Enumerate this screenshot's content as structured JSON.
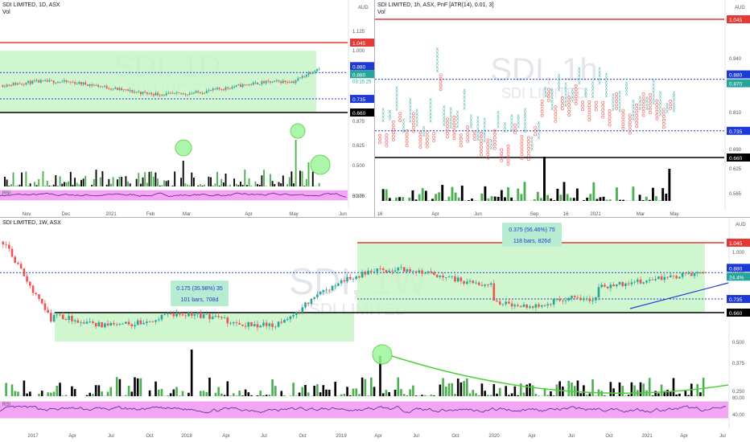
{
  "colors": {
    "up": "#26a69a",
    "down": "#ef5350",
    "vol_up": "#4caf50",
    "vol_down": "#000000",
    "band": "#c8f5c8",
    "rsi_band": "#f3a6f3",
    "red_level": "#e53935",
    "blue_level": "#1e3ad6",
    "black_level": "#000000",
    "trend": "#1e3ad6",
    "arc": "#4cd137"
  },
  "pane_daily": {
    "title": "SDI LIMITED, 1D, ASX",
    "vol_label": "Vol",
    "watermark": "SDI, 1D",
    "watermark_sub": "SDI LIMITED",
    "currency": "AUD",
    "y_ticks": [
      "1.125",
      "1.000",
      "0.875",
      "0.625",
      "0.500",
      "0.375",
      "50.00"
    ],
    "level_tags": [
      "1.045",
      "0.880",
      "0.880",
      "0.735",
      "0.660"
    ],
    "countdown": "03:15:25",
    "x_ticks": [
      "Nov",
      "Dec",
      "2021",
      "Feb",
      "Mar",
      "Apr",
      "May",
      "Jun"
    ],
    "rsi_label": "RSI",
    "chart_data": {
      "type": "candlestick",
      "levels": [
        1.045,
        0.88,
        0.735,
        0.66
      ],
      "last": 0.88,
      "ylim": [
        0.56,
        1.16
      ]
    }
  },
  "pane_pnf": {
    "title": "SDI LIMITED, 1h, ASX, PnF [ATR(14), 0.01, 3]",
    "vol_label": "Vol",
    "watermark": "SDI, 1h",
    "watermark_sub": "SDI LIMITED",
    "currency": "AUD",
    "y_ticks": [
      "0.940",
      "0.810",
      "0.690",
      "0.625",
      "0.565"
    ],
    "level_tags": [
      "1.045",
      "0.880",
      "0.870",
      "0.735",
      "0.660"
    ],
    "x_ticks": [
      "16",
      "Apr",
      "Jun",
      "Sep",
      "16",
      "2021",
      "Mar",
      "May"
    ],
    "chart_data": {
      "type": "point-and-figure",
      "levels": [
        1.045,
        0.88,
        0.735,
        0.66
      ],
      "box_size": 0.01,
      "reversal": 3,
      "ylim": [
        0.55,
        1.1
      ]
    }
  },
  "pane_weekly": {
    "title": "SDI LIMITED, 1W, ASX",
    "watermark": "SDI, 1W",
    "watermark_sub": "SDI LIMITED",
    "currency": "AUD",
    "y_ticks": [
      "1.000",
      "0.880",
      "0.500",
      "0.375",
      "0.250",
      "80.00",
      "40.00"
    ],
    "level_tags": [
      "1.045",
      "0.880",
      "24.4%",
      "0.735",
      "0.660"
    ],
    "box1_line1": "0.175 (35.98%) 35",
    "box1_line2": "101 bars, 708d",
    "box2_line1": "0.375 (56.46%) 75",
    "box2_line2": "118 bars, 826d",
    "x_ticks": [
      "2017",
      "Apr",
      "Jul",
      "Oct",
      "2018",
      "Apr",
      "Jul",
      "Oct",
      "2019",
      "Apr",
      "Jul",
      "Oct",
      "2020",
      "Apr",
      "Jul",
      "Oct",
      "2021",
      "Apr",
      "Jul"
    ],
    "rsi_label": "RSI",
    "chart_data": {
      "type": "candlestick",
      "levels": [
        1.045,
        0.88,
        0.735,
        0.66
      ],
      "ylim": [
        0.22,
        1.14
      ],
      "measures": [
        {
          "change": 0.175,
          "percent": 35.98,
          "ticks": 35,
          "bars": 101,
          "days": 708
        },
        {
          "change": 0.375,
          "percent": 56.46,
          "ticks": 75,
          "bars": 118,
          "days": 826
        }
      ]
    }
  }
}
